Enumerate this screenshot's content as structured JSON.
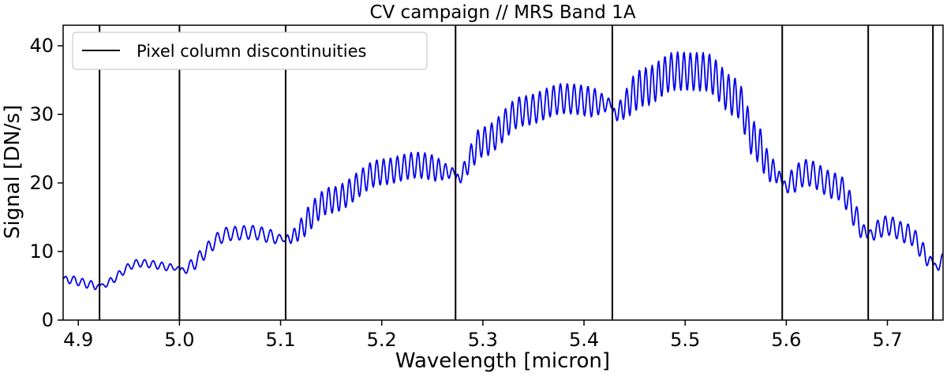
{
  "chart_data": {
    "type": "line",
    "title": "CV campaign // MRS Band 1A",
    "xlabel": "Wavelength [micron]",
    "ylabel": "Signal [DN/s]",
    "xlim": [
      4.885,
      5.755
    ],
    "ylim": [
      0,
      43
    ],
    "xticks": [
      4.9,
      5.0,
      5.1,
      5.2,
      5.3,
      5.4,
      5.5,
      5.6,
      5.7
    ],
    "xtick_labels": [
      "4.9",
      "5.0",
      "5.1",
      "5.2",
      "5.3",
      "5.4",
      "5.5",
      "5.6",
      "5.7"
    ],
    "yticks": [
      0,
      10,
      20,
      30,
      40
    ],
    "ytick_labels": [
      "0",
      "10",
      "20",
      "30",
      "40"
    ],
    "grid": false,
    "legend": {
      "placement": "top-left",
      "entries": [
        {
          "label": "Pixel column discontinuities",
          "color": "#000000",
          "style": "line"
        }
      ]
    },
    "discontinuities": {
      "name": "Pixel column discontinuities",
      "color": "#000000",
      "x": [
        4.921,
        5.0,
        5.105,
        5.273,
        5.428,
        5.596,
        5.681,
        5.745
      ]
    },
    "signal": {
      "color": "#0000ee",
      "segments": [
        {
          "x_start": 4.885,
          "x_end": 4.921,
          "envelope": [
            [
              4.885,
              6.0
            ],
            [
              4.921,
              5.0
            ]
          ],
          "amplitude": 0.6,
          "period": 0.0085
        },
        {
          "x_start": 4.921,
          "x_end": 5.0,
          "envelope": [
            [
              4.921,
              5.0
            ],
            [
              4.96,
              8.3
            ],
            [
              5.0,
              7.6
            ]
          ],
          "amplitude": 0.55,
          "period": 0.0085
        },
        {
          "x_start": 5.0,
          "x_end": 5.105,
          "envelope": [
            [
              5.0,
              7.2
            ],
            [
              5.05,
              12.6
            ],
            [
              5.07,
              12.8
            ],
            [
              5.105,
              11.8
            ]
          ],
          "amplitude": 1.0,
          "period": 0.0088
        },
        {
          "x_start": 5.105,
          "x_end": 5.273,
          "envelope": [
            [
              5.105,
              11.8
            ],
            [
              5.15,
              17.5
            ],
            [
              5.2,
              21.6
            ],
            [
              5.235,
              22.6
            ],
            [
              5.273,
              21.5
            ]
          ],
          "amplitude": 1.9,
          "period": 0.0068
        },
        {
          "x_start": 5.273,
          "x_end": 5.428,
          "envelope": [
            [
              5.273,
              20.5
            ],
            [
              5.3,
              26.0
            ],
            [
              5.34,
              30.5
            ],
            [
              5.38,
              32.3
            ],
            [
              5.428,
              31.5
            ]
          ],
          "amplitude": 2.2,
          "period": 0.0068
        },
        {
          "x_start": 5.428,
          "x_end": 5.596,
          "envelope": [
            [
              5.428,
              30.0
            ],
            [
              5.46,
              34.0
            ],
            [
              5.49,
              36.3
            ],
            [
              5.52,
              36.2
            ],
            [
              5.55,
              32.5
            ],
            [
              5.57,
              26.0
            ],
            [
              5.585,
              22.0
            ],
            [
              5.596,
              20.5
            ]
          ],
          "amplitude": 2.8,
          "period": 0.0063
        },
        {
          "x_start": 5.596,
          "x_end": 5.681,
          "envelope": [
            [
              5.596,
              19.5
            ],
            [
              5.62,
              21.5
            ],
            [
              5.65,
              19.5
            ],
            [
              5.681,
              12.5
            ]
          ],
          "amplitude": 1.9,
          "period": 0.0072
        },
        {
          "x_start": 5.681,
          "x_end": 5.745,
          "envelope": [
            [
              5.681,
              12.5
            ],
            [
              5.7,
              13.8
            ],
            [
              5.72,
              12.6
            ],
            [
              5.745,
              8.5
            ]
          ],
          "amplitude": 1.4,
          "period": 0.0075
        },
        {
          "x_start": 5.745,
          "x_end": 5.755,
          "envelope": [
            [
              5.745,
              8.0
            ],
            [
              5.75,
              7.6
            ],
            [
              5.755,
              9.5
            ]
          ],
          "amplitude": 0.4,
          "period": 0.008
        }
      ]
    }
  }
}
